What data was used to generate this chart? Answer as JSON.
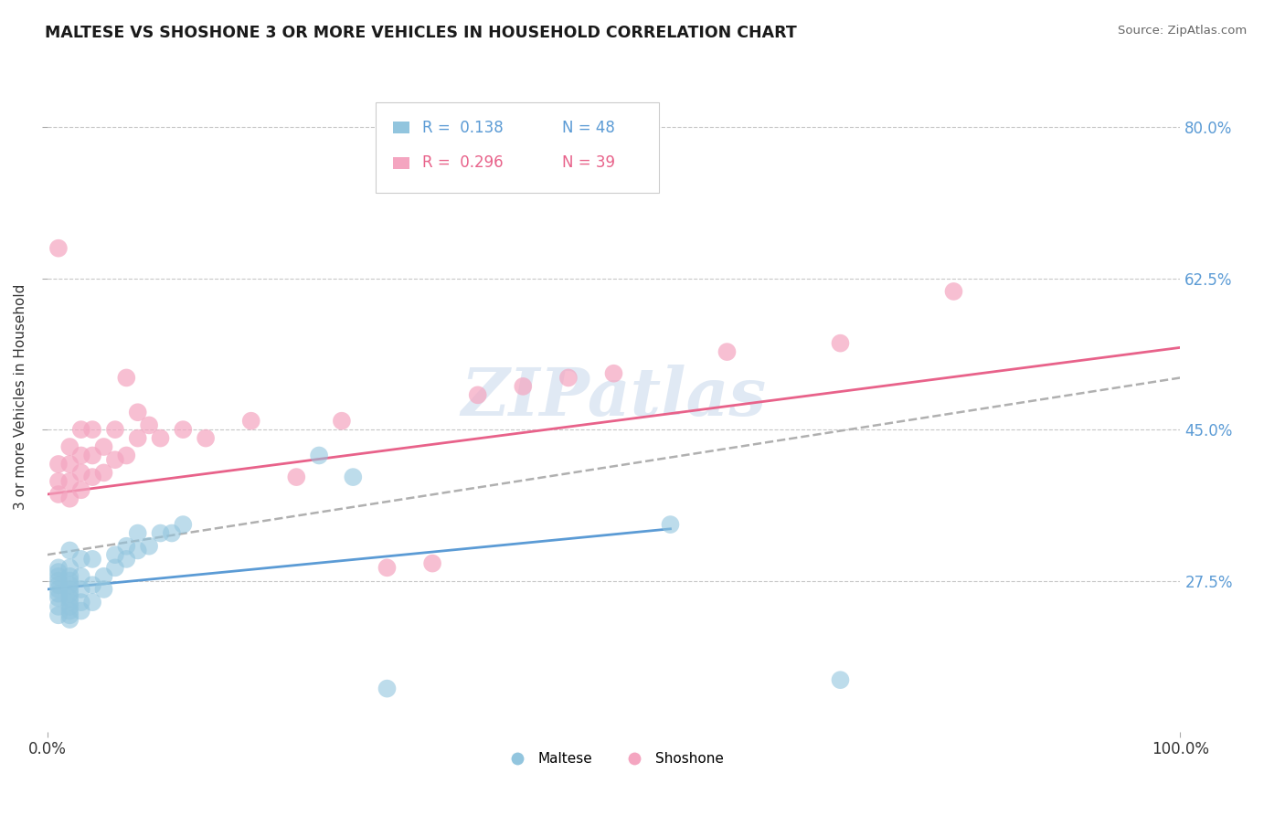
{
  "title": "MALTESE VS SHOSHONE 3 OR MORE VEHICLES IN HOUSEHOLD CORRELATION CHART",
  "source": "Source: ZipAtlas.com",
  "ylabel": "3 or more Vehicles in Household",
  "xlim": [
    0.0,
    1.0
  ],
  "ylim": [
    0.1,
    0.875
  ],
  "xtick_labels": [
    "0.0%",
    "100.0%"
  ],
  "ytick_labels_right": [
    "80.0%",
    "62.5%",
    "45.0%",
    "27.5%"
  ],
  "ytick_values": [
    0.8,
    0.625,
    0.45,
    0.275
  ],
  "xtick_values": [
    0.0,
    1.0
  ],
  "watermark": "ZIPatlas",
  "legend_r_maltese": "R =  0.138",
  "legend_n_maltese": "N = 48",
  "legend_r_shoshone": "R =  0.296",
  "legend_n_shoshone": "N = 39",
  "maltese_color": "#92c5de",
  "shoshone_color": "#f4a5c0",
  "maltese_line_color": "#5b9bd5",
  "shoshone_line_color": "#e8628a",
  "trend_line_color": "#b0b0b0",
  "background_color": "#ffffff",
  "grid_color": "#c8c8c8",
  "maltese_scatter_x": [
    0.01,
    0.01,
    0.01,
    0.01,
    0.01,
    0.01,
    0.01,
    0.01,
    0.01,
    0.01,
    0.02,
    0.02,
    0.02,
    0.02,
    0.02,
    0.02,
    0.02,
    0.02,
    0.02,
    0.02,
    0.02,
    0.02,
    0.02,
    0.03,
    0.03,
    0.03,
    0.03,
    0.03,
    0.04,
    0.04,
    0.04,
    0.05,
    0.05,
    0.06,
    0.06,
    0.07,
    0.07,
    0.08,
    0.08,
    0.09,
    0.1,
    0.11,
    0.12,
    0.24,
    0.27,
    0.3,
    0.55,
    0.7
  ],
  "maltese_scatter_y": [
    0.235,
    0.245,
    0.255,
    0.26,
    0.265,
    0.27,
    0.275,
    0.28,
    0.285,
    0.29,
    0.23,
    0.235,
    0.24,
    0.245,
    0.25,
    0.255,
    0.26,
    0.265,
    0.27,
    0.275,
    0.28,
    0.29,
    0.31,
    0.24,
    0.25,
    0.265,
    0.28,
    0.3,
    0.25,
    0.27,
    0.3,
    0.265,
    0.28,
    0.29,
    0.305,
    0.3,
    0.315,
    0.31,
    0.33,
    0.315,
    0.33,
    0.33,
    0.34,
    0.42,
    0.395,
    0.15,
    0.34,
    0.16
  ],
  "shoshone_scatter_x": [
    0.01,
    0.01,
    0.01,
    0.01,
    0.02,
    0.02,
    0.02,
    0.02,
    0.03,
    0.03,
    0.03,
    0.03,
    0.04,
    0.04,
    0.04,
    0.05,
    0.05,
    0.06,
    0.06,
    0.07,
    0.07,
    0.08,
    0.08,
    0.09,
    0.1,
    0.12,
    0.14,
    0.18,
    0.22,
    0.26,
    0.3,
    0.34,
    0.38,
    0.42,
    0.46,
    0.5,
    0.6,
    0.7,
    0.8
  ],
  "shoshone_scatter_y": [
    0.375,
    0.39,
    0.41,
    0.66,
    0.37,
    0.39,
    0.41,
    0.43,
    0.38,
    0.4,
    0.42,
    0.45,
    0.395,
    0.42,
    0.45,
    0.4,
    0.43,
    0.415,
    0.45,
    0.42,
    0.51,
    0.44,
    0.47,
    0.455,
    0.44,
    0.45,
    0.44,
    0.46,
    0.395,
    0.46,
    0.29,
    0.295,
    0.49,
    0.5,
    0.51,
    0.515,
    0.54,
    0.55,
    0.61
  ],
  "maltese_trend_x0": 0.0,
  "maltese_trend_x1": 0.55,
  "maltese_trend_y0": 0.265,
  "maltese_trend_y1": 0.335,
  "shoshone_trend_x0": 0.0,
  "shoshone_trend_x1": 1.0,
  "shoshone_trend_y0": 0.375,
  "shoshone_trend_y1": 0.545,
  "combined_trend_x0": 0.0,
  "combined_trend_x1": 1.0,
  "combined_trend_y0": 0.305,
  "combined_trend_y1": 0.51
}
